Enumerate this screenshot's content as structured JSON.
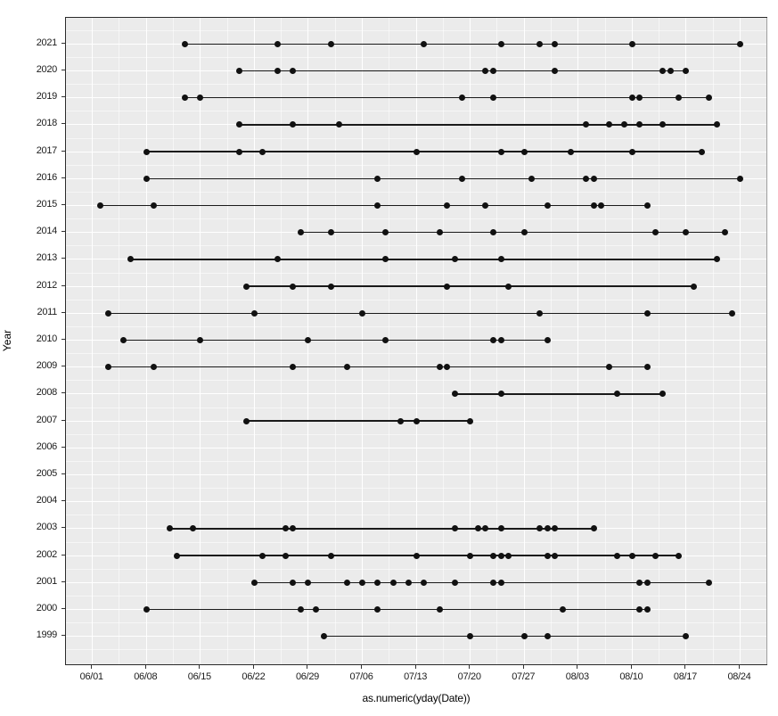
{
  "chart_data": {
    "type": "scatter",
    "title": "",
    "xlabel": "as.numeric(yday(Date))",
    "ylabel": "Year",
    "x_tick_dates": [
      "06/01",
      "06/08",
      "06/15",
      "06/22",
      "06/29",
      "07/06",
      "07/13",
      "07/20",
      "07/27",
      "08/03",
      "08/10",
      "08/17",
      "08/24"
    ],
    "x_range_days": [
      0,
      84
    ],
    "grid": "major-and-minor",
    "legend": "none",
    "categories": [
      "2021",
      "2020",
      "2019",
      "2018",
      "2017",
      "2016",
      "2015",
      "2014",
      "2013",
      "2012",
      "2011",
      "2010",
      "2009",
      "2008",
      "2007",
      "2006",
      "2005",
      "2004",
      "2003",
      "2002",
      "2001",
      "2000",
      "1999"
    ],
    "series": [
      {
        "year": "2021",
        "dates": [
          "06/13",
          "06/25",
          "07/02",
          "07/14",
          "07/24",
          "07/29",
          "07/31",
          "08/10",
          "08/24"
        ]
      },
      {
        "year": "2020",
        "dates": [
          "06/20",
          "06/25",
          "06/27",
          "07/22",
          "07/23",
          "07/31",
          "08/14",
          "08/15",
          "08/17"
        ]
      },
      {
        "year": "2019",
        "dates": [
          "06/13",
          "06/15",
          "07/19",
          "07/23",
          "08/10",
          "08/11",
          "08/16",
          "08/20"
        ]
      },
      {
        "year": "2018",
        "dates": [
          "06/20",
          "06/27",
          "07/03",
          "08/04",
          "08/07",
          "08/09",
          "08/11",
          "08/14",
          "08/21"
        ]
      },
      {
        "year": "2017",
        "dates": [
          "06/08",
          "06/20",
          "06/23",
          "07/13",
          "07/24",
          "07/27",
          "08/02",
          "08/10",
          "08/19"
        ]
      },
      {
        "year": "2016",
        "dates": [
          "06/08",
          "07/08",
          "07/19",
          "07/28",
          "08/04",
          "08/05",
          "08/24"
        ]
      },
      {
        "year": "2015",
        "dates": [
          "06/02",
          "06/09",
          "07/08",
          "07/17",
          "07/22",
          "07/30",
          "08/05",
          "08/06",
          "08/12"
        ]
      },
      {
        "year": "2014",
        "dates": [
          "06/28",
          "07/02",
          "07/09",
          "07/16",
          "07/23",
          "07/27",
          "08/13",
          "08/17",
          "08/22"
        ]
      },
      {
        "year": "2013",
        "dates": [
          "06/06",
          "06/25",
          "07/09",
          "07/18",
          "07/24",
          "08/21"
        ]
      },
      {
        "year": "2012",
        "dates": [
          "06/21",
          "06/27",
          "07/02",
          "07/17",
          "07/25",
          "08/18"
        ]
      },
      {
        "year": "2011",
        "dates": [
          "06/03",
          "06/22",
          "07/06",
          "07/29",
          "08/12",
          "08/23"
        ]
      },
      {
        "year": "2010",
        "dates": [
          "06/05",
          "06/15",
          "06/29",
          "07/09",
          "07/23",
          "07/24",
          "07/30"
        ]
      },
      {
        "year": "2009",
        "dates": [
          "06/03",
          "06/09",
          "06/27",
          "07/04",
          "07/16",
          "07/17",
          "08/07",
          "08/12"
        ]
      },
      {
        "year": "2008",
        "dates": [
          "07/18",
          "07/24",
          "08/08",
          "08/14"
        ]
      },
      {
        "year": "2007",
        "dates": [
          "06/21",
          "07/11",
          "07/13",
          "07/20"
        ]
      },
      {
        "year": "2006",
        "dates": []
      },
      {
        "year": "2005",
        "dates": []
      },
      {
        "year": "2004",
        "dates": []
      },
      {
        "year": "2003",
        "dates": [
          "06/11",
          "06/14",
          "06/26",
          "06/27",
          "07/18",
          "07/21",
          "07/22",
          "07/24",
          "07/29",
          "07/30",
          "07/31",
          "08/05"
        ]
      },
      {
        "year": "2002",
        "dates": [
          "06/12",
          "06/23",
          "06/26",
          "07/02",
          "07/13",
          "07/20",
          "07/23",
          "07/24",
          "07/25",
          "07/30",
          "07/31",
          "08/08",
          "08/10",
          "08/13",
          "08/16"
        ]
      },
      {
        "year": "2001",
        "dates": [
          "06/22",
          "06/27",
          "06/29",
          "07/04",
          "07/06",
          "07/08",
          "07/10",
          "07/12",
          "07/14",
          "07/18",
          "07/23",
          "07/24",
          "08/11",
          "08/12",
          "08/20"
        ]
      },
      {
        "year": "2000",
        "dates": [
          "06/08",
          "06/28",
          "06/30",
          "07/08",
          "07/16",
          "08/01",
          "08/11",
          "08/12"
        ]
      },
      {
        "year": "1999",
        "dates": [
          "07/01",
          "07/20",
          "07/27",
          "07/30",
          "08/17"
        ]
      }
    ]
  },
  "colors": {
    "panel_background": "#EBEBEB",
    "grid_major": "#FFFFFF",
    "grid_minor": "rgba(255,255,255,0.55)",
    "panel_border": "#2B2B2B",
    "point": "#111111",
    "segment": "#1A1A1A",
    "tick": "#333333",
    "axis_text": "#1C1C1C",
    "axis_title": "#000000",
    "outer_background": "#FFFFFF"
  }
}
